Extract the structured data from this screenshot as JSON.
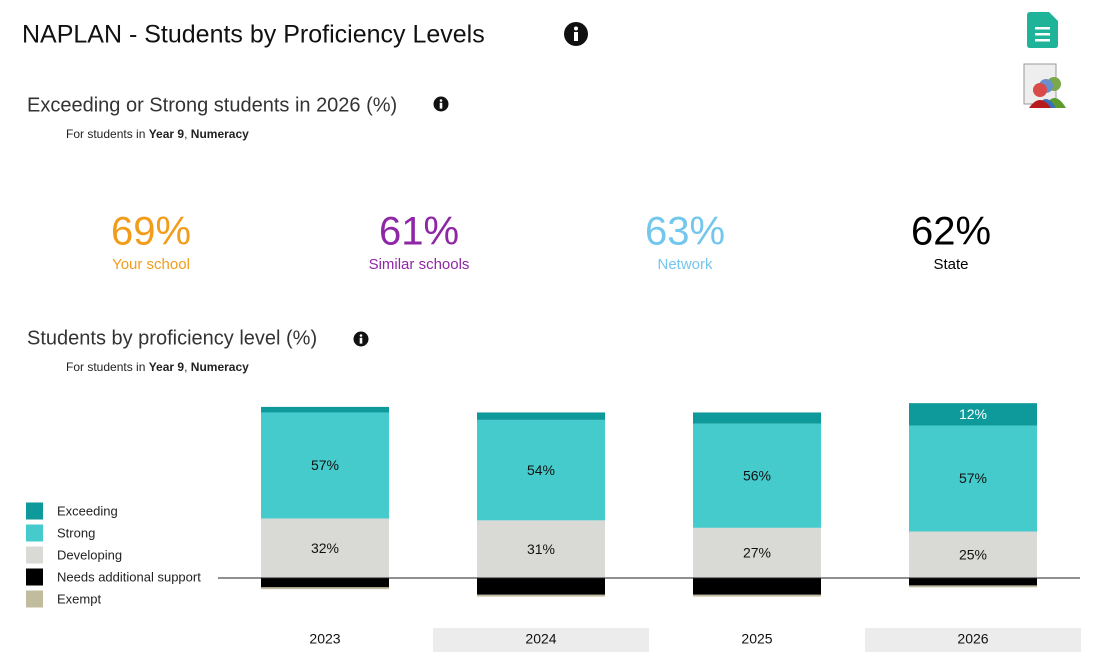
{
  "header": {
    "title": "NAPLAN - Students by Proficiency Levels"
  },
  "summary": {
    "title": "Exceeding or Strong students in 2026 (%)",
    "subtitle": {
      "prefix": "For students in",
      "year": "Year 9",
      "separator": ",",
      "subject": "Numeracy"
    },
    "items": [
      {
        "label": "Your school",
        "value": 69,
        "value_label": "69%",
        "color": "#f39c1a"
      },
      {
        "label": "Similar schools",
        "value": 61,
        "value_label": "61%",
        "color": "#8e27a6"
      },
      {
        "label": "Network",
        "value": 63,
        "value_label": "63%",
        "color": "#73c6ec"
      },
      {
        "label": "State",
        "value": 62,
        "value_label": "62%",
        "color": "#000000"
      }
    ]
  },
  "chart_data": {
    "type": "stacked_bar",
    "title": "Students by proficiency level (%)",
    "subtitle": {
      "prefix": "For students in",
      "year": "Year 9",
      "separator": ",",
      "subject": "Numeracy"
    },
    "categories": [
      "2023",
      "2024",
      "2025",
      "2026"
    ],
    "series": [
      {
        "name": "Exceeding",
        "color": "#0e9a9a",
        "side": "above",
        "values": [
          3,
          4,
          6,
          12
        ],
        "value_labels": [
          null,
          null,
          null,
          "12%"
        ]
      },
      {
        "name": "Strong",
        "color": "#45cbcb",
        "side": "above",
        "values": [
          57,
          54,
          56,
          57
        ],
        "value_labels": [
          "57%",
          "54%",
          "56%",
          "57%"
        ]
      },
      {
        "name": "Developing",
        "color": "#d9d9d6",
        "side": "above",
        "values": [
          32,
          31,
          27,
          25
        ],
        "value_labels": [
          "32%",
          "31%",
          "27%",
          "25%"
        ]
      },
      {
        "name": "Needs additional support",
        "color": "#000000",
        "side": "below",
        "values": [
          5,
          9,
          9,
          4
        ]
      },
      {
        "name": "Exempt",
        "color": "#c2bc9e",
        "side": "below",
        "values": [
          1,
          1,
          1,
          1
        ]
      }
    ]
  }
}
